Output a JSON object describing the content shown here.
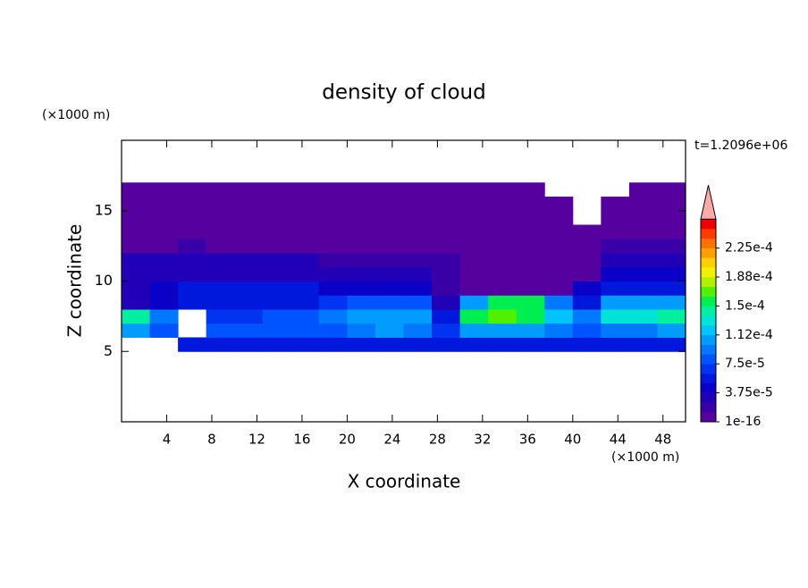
{
  "chart_data": {
    "type": "contour",
    "title": "density of cloud",
    "x_label": "X coordinate",
    "y_label": "Z coordinate",
    "x_unit": "(×1000 m)",
    "y_unit": "(×1000 m)",
    "annotation": "t=1.2096e+06",
    "xlim": [
      0,
      50
    ],
    "ylim": [
      0,
      20
    ],
    "xticks": [
      4,
      8,
      12,
      16,
      20,
      24,
      28,
      32,
      36,
      40,
      44,
      48
    ],
    "yticks": [
      5,
      10,
      15
    ],
    "x": [
      1.25,
      3.75,
      6.25,
      8.75,
      11.25,
      13.75,
      16.25,
      18.75,
      21.25,
      23.75,
      26.25,
      28.75,
      31.25,
      33.75,
      36.25,
      38.75,
      41.25,
      43.75,
      46.25,
      48.75
    ],
    "y": [
      5.5,
      6.5,
      7.5,
      8.5,
      9.5,
      10.5,
      11.5,
      12.5,
      13.5,
      14.5,
      15.5,
      16.5
    ],
    "values": [
      [
        null,
        null,
        5e-05,
        5e-05,
        5e-05,
        5e-05,
        5e-05,
        5e-05,
        5e-05,
        5e-05,
        5e-05,
        5e-05,
        6e-05,
        6e-05,
        6e-05,
        5e-05,
        5e-05,
        6e-05,
        6e-05,
        6e-05
      ],
      [
        0.0001,
        8e-05,
        null,
        8e-05,
        8e-05,
        8e-05,
        8e-05,
        8e-05,
        9e-05,
        0.0001,
        9e-05,
        7e-05,
        0.0001,
        0.0001,
        0.0001,
        9e-05,
        8e-05,
        9e-05,
        9e-05,
        0.0001
      ],
      [
        0.00014,
        9e-05,
        null,
        7e-05,
        7e-05,
        8e-05,
        8e-05,
        9e-05,
        0.00011,
        0.00011,
        0.00011,
        6e-05,
        0.00016,
        0.00017,
        0.00016,
        0.00012,
        9e-05,
        0.00013,
        0.00013,
        0.00014
      ],
      [
        3e-05,
        4e-05,
        5e-05,
        6e-05,
        6e-05,
        6e-05,
        6e-05,
        7e-05,
        8e-05,
        8e-05,
        8e-05,
        3e-05,
        0.0001,
        0.00015,
        0.00015,
        9e-05,
        6e-05,
        0.0001,
        0.0001,
        0.0001
      ],
      [
        3e-05,
        4e-05,
        5e-05,
        5e-05,
        5e-05,
        5e-05,
        5e-05,
        4e-05,
        4e-05,
        4e-05,
        4e-05,
        2e-05,
        1e-05,
        1e-05,
        1e-05,
        1e-05,
        4e-05,
        6e-05,
        6e-05,
        6e-05
      ],
      [
        3.5e-05,
        3.5e-05,
        3.5e-05,
        3.5e-05,
        3.5e-05,
        3e-05,
        3e-05,
        3e-05,
        3e-05,
        3e-05,
        2.5e-05,
        1.5e-05,
        8e-06,
        8e-06,
        8e-06,
        8e-06,
        8e-06,
        4e-05,
        4e-05,
        4e-05
      ],
      [
        2.5e-05,
        2.5e-05,
        2.5e-05,
        2.5e-05,
        2.5e-05,
        2.5e-05,
        2.5e-05,
        1.5e-05,
        1.5e-05,
        1.5e-05,
        1.5e-05,
        1.5e-05,
        8e-06,
        8e-06,
        8e-06,
        8e-06,
        1e-05,
        3e-05,
        3e-05,
        3e-05
      ],
      [
        1e-05,
        1e-05,
        1.5e-05,
        1e-05,
        1e-05,
        1e-05,
        1e-05,
        1e-05,
        1e-05,
        1e-05,
        1e-05,
        1e-05,
        5e-06,
        5e-06,
        5e-06,
        5e-06,
        5e-06,
        2e-05,
        2e-05,
        2e-05
      ],
      [
        8e-06,
        8e-06,
        8e-06,
        8e-06,
        8e-06,
        8e-06,
        8e-06,
        8e-06,
        8e-06,
        8e-06,
        8e-06,
        8e-06,
        5e-06,
        5e-06,
        5e-06,
        5e-06,
        5e-06,
        5e-06,
        8e-06,
        8e-06
      ],
      [
        5e-06,
        5e-06,
        5e-06,
        5e-06,
        5e-06,
        5e-06,
        5e-06,
        5e-06,
        5e-06,
        5e-06,
        5e-06,
        5e-06,
        5e-06,
        5e-06,
        5e-06,
        5e-06,
        null,
        5e-06,
        5e-06,
        5e-06
      ],
      [
        5e-06,
        5e-06,
        5e-06,
        5e-06,
        5e-06,
        5e-06,
        5e-06,
        5e-06,
        5e-06,
        5e-06,
        5e-06,
        5e-06,
        5e-06,
        5e-06,
        5e-06,
        5e-06,
        null,
        5e-06,
        5e-06,
        5e-06
      ],
      [
        3e-06,
        3e-06,
        3e-06,
        3e-06,
        3e-06,
        3e-06,
        3e-06,
        3e-06,
        3e-06,
        3e-06,
        3e-06,
        3e-06,
        3e-06,
        3e-06,
        3e-06,
        null,
        null,
        null,
        3e-06,
        3e-06
      ]
    ],
    "levels": [
      1e-16,
      1.25e-05,
      2.5e-05,
      3.75e-05,
      5e-05,
      6.25e-05,
      7.5e-05,
      8.75e-05,
      0.0001,
      0.0001125,
      0.000125,
      0.0001375,
      0.00015,
      0.0001625,
      0.000175,
      0.0001875,
      0.0002,
      0.0002125,
      0.000225,
      0.0002375,
      0.00025
    ],
    "colors": [
      "#55009f",
      "#3a00a8",
      "#2200b8",
      "#0a00c8",
      "#0018dc",
      "#0034f0",
      "#0054ff",
      "#0078ff",
      "#009cff",
      "#00c4ff",
      "#00e4d8",
      "#00f0a0",
      "#00ee50",
      "#50f000",
      "#b0f000",
      "#f0f000",
      "#ffd000",
      "#ffa000",
      "#ff7000",
      "#ff3c00",
      "#f00000"
    ],
    "over_color": "#ffaaaa",
    "colorbar_ticks": [
      {
        "value": 1e-16,
        "label": "1e-16"
      },
      {
        "value": 3.75e-05,
        "label": "3.75e-5"
      },
      {
        "value": 7.5e-05,
        "label": "7.5e-5"
      },
      {
        "value": 0.0001125,
        "label": "1.12e-4"
      },
      {
        "value": 0.00015,
        "label": "1.5e-4"
      },
      {
        "value": 0.0001875,
        "label": "1.88e-4"
      },
      {
        "value": 0.000225,
        "label": "2.25e-4"
      }
    ]
  }
}
